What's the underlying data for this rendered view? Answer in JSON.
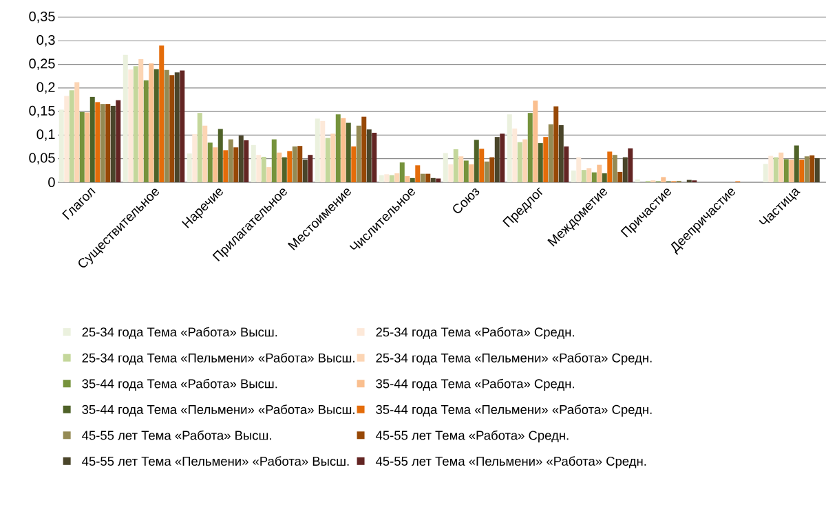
{
  "chart_data": {
    "type": "bar",
    "categories": [
      "Глагол",
      "Существительное",
      "Наречие",
      "Прилагательное",
      "Местоимение",
      "Числительное",
      "Союз",
      "Предлог",
      "Междометие",
      "Причастие",
      "Деепричастие",
      "Частица"
    ],
    "series": [
      {
        "name": "25-34 года Тема «Работа» Высш.",
        "color": "#ebf1de",
        "values": [
          0.154,
          0.27,
          0.061,
          0.079,
          0.135,
          0.015,
          0.062,
          0.144,
          0.025,
          0.006,
          0,
          0.039
        ]
      },
      {
        "name": "25-34 года Тема «Работа» Средн.",
        "color": "#fde9d9",
        "values": [
          0.183,
          0.239,
          0.102,
          0.058,
          0.13,
          0.017,
          0.038,
          0.114,
          0.053,
          null,
          0,
          0.056
        ]
      },
      {
        "name": "25-34 года Тема «Пельмени» «Работа» Высш.",
        "color": "#c4d79b",
        "values": [
          0.195,
          0.246,
          0.147,
          0.054,
          0.094,
          0.015,
          0.07,
          0.085,
          0.026,
          0.003,
          0,
          0.053
        ]
      },
      {
        "name": "25-34 года Тема «Пельмени» «Работа» Средн.",
        "color": "#fcd5b4",
        "values": [
          0.212,
          0.261,
          0.12,
          0.032,
          0.103,
          0.019,
          0.055,
          0.091,
          0.03,
          0.004,
          0,
          0.063
        ]
      },
      {
        "name": "35-44 года Тема «Работа» Высш.",
        "color": "#76933c",
        "values": [
          0.149,
          0.216,
          0.084,
          0.091,
          0.144,
          0.042,
          0.046,
          0.147,
          0.021,
          0.002,
          0,
          0.049
        ]
      },
      {
        "name": "35-44 года Тема «Работа» Средн.",
        "color": "#fabf8f",
        "values": [
          0.148,
          0.252,
          0.074,
          0.063,
          0.136,
          0.013,
          0.038,
          0.173,
          0.037,
          0.011,
          0,
          0.048
        ]
      },
      {
        "name": "35-44 года Тема «Пельмени» «Работа» Высш.",
        "color": "#4f6228",
        "values": [
          0.181,
          0.24,
          0.113,
          0.053,
          0.126,
          0.009,
          0.09,
          0.083,
          0.019,
          0.002,
          0,
          0.078
        ]
      },
      {
        "name": "35-44 года Тема «Пельмени» «Работа» Средн.",
        "color": "#e46c0a",
        "values": [
          0.17,
          0.29,
          0.068,
          0.066,
          0.076,
          0.036,
          0.071,
          0.096,
          0.065,
          0.002,
          0.002,
          0.048
        ]
      },
      {
        "name": "45-55 лет Тема «Работа» Высш.",
        "color": "#948a54",
        "values": [
          0.166,
          0.238,
          0.091,
          0.076,
          0.12,
          0.018,
          0.044,
          0.123,
          0.058,
          0.003,
          0,
          0.055
        ]
      },
      {
        "name": "45-55 лет Тема «Работа» Средн.",
        "color": "#974806",
        "values": [
          0.166,
          0.227,
          0.074,
          0.077,
          0.139,
          0.018,
          0.053,
          0.161,
          0.022,
          0,
          0,
          0.057
        ]
      },
      {
        "name": "45-55 лет Тема «Пельмени» «Работа» Высш.",
        "color": "#4a452a",
        "values": [
          0.162,
          0.233,
          0.099,
          0.048,
          0.112,
          0.009,
          0.096,
          0.121,
          0.053,
          0.005,
          0,
          0.051
        ]
      },
      {
        "name": "45-55 лет Тема «Пельмени» «Работа» Средн.",
        "color": "#632523",
        "values": [
          0.174,
          0.237,
          0.089,
          0.058,
          0.105,
          0.008,
          0.103,
          0.076,
          0.072,
          0.004,
          0,
          null
        ]
      }
    ],
    "ylim": [
      0,
      0.35
    ],
    "yticks": [
      0,
      {
        "value": 0.05,
        "label": "0,05"
      },
      {
        "value": 0.1,
        "label": "0,1"
      },
      {
        "value": 0.15,
        "label": "0,15"
      },
      {
        "value": 0.2,
        "label": "0,2"
      },
      {
        "value": 0.25,
        "label": "0,25"
      },
      {
        "value": 0.3,
        "label": "0,3"
      },
      {
        "value": 0.35,
        "label": "0,35"
      }
    ],
    "grid": "y",
    "legend": "bottom"
  }
}
